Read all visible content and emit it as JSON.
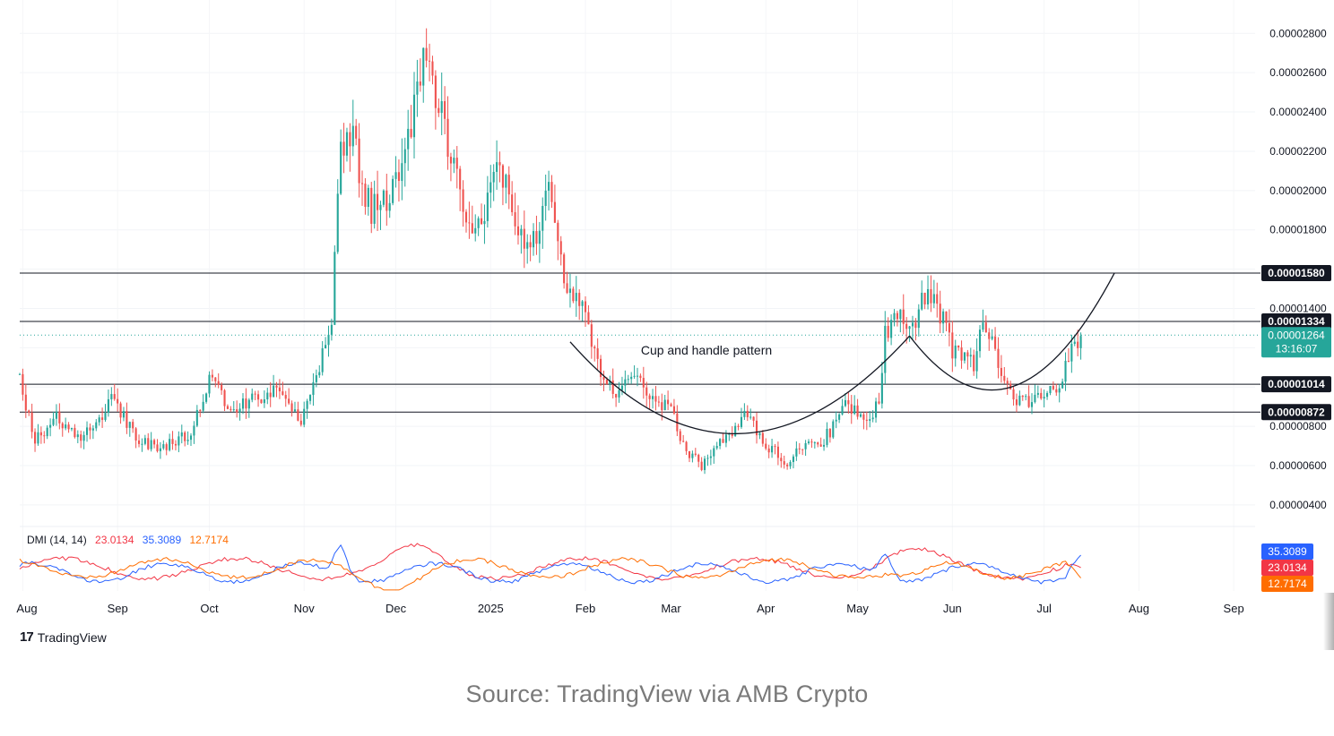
{
  "caption": "Source: TradingView via AMB Crypto",
  "brand": {
    "mark": "17",
    "name": "TradingView"
  },
  "chart_data": [
    {
      "type": "candlestick",
      "title": "",
      "x_axis": {
        "tick_labels": [
          "Aug",
          "Sep",
          "Oct",
          "Nov",
          "Dec",
          "2025",
          "Feb",
          "Mar",
          "Apr",
          "May",
          "Jun",
          "Jul",
          "Aug",
          "Sep"
        ],
        "range": [
          "2024-07-31",
          "2025-09-08"
        ]
      },
      "y_axis": {
        "position": "right",
        "tick_labels": [
          "0.00002800",
          "0.00002600",
          "0.00002400",
          "0.00002200",
          "0.00002000",
          "0.00001800",
          "0.00001400",
          "0.00000800",
          "0.00000600",
          "0.00000400"
        ],
        "range": [
          2.9e-06,
          2.97e-05
        ]
      },
      "horizontal_levels": [
        {
          "value": 1.58e-05,
          "label": "0.00001580"
        },
        {
          "value": 1.334e-05,
          "label": "0.00001334"
        },
        {
          "value": 1.014e-05,
          "label": "0.00001014"
        },
        {
          "value": 8.72e-06,
          "label": "0.00000872"
        }
      ],
      "current_price": {
        "value": 1.264e-05,
        "label": "0.00001264",
        "countdown": "13:16:07"
      },
      "annotation": "Cup and handle pattern",
      "colors": {
        "up": "#26a69a",
        "down": "#ef5350",
        "level": "#131722",
        "current": "#26a69a"
      },
      "close_path_keypoints": [
        [
          "2024-07-31",
          1.05e-05
        ],
        [
          "2024-08-05",
          7.2e-06
        ],
        [
          "2024-08-12",
          8.5e-06
        ],
        [
          "2024-08-20",
          7.3e-06
        ],
        [
          "2024-08-30",
          9.3e-06
        ],
        [
          "2024-09-08",
          7.3e-06
        ],
        [
          "2024-09-15",
          6.9e-06
        ],
        [
          "2024-09-25",
          7.7e-06
        ],
        [
          "2024-10-02",
          1.07e-05
        ],
        [
          "2024-10-08",
          8.7e-06
        ],
        [
          "2024-10-15",
          9.4e-06
        ],
        [
          "2024-10-22",
          9.8e-06
        ],
        [
          "2024-10-31",
          8.2e-06
        ],
        [
          "2024-11-05",
          1.03e-05
        ],
        [
          "2024-11-10",
          1.35e-05
        ],
        [
          "2024-11-13",
          2.18e-05
        ],
        [
          "2024-11-16",
          2.32e-05
        ],
        [
          "2024-11-23",
          1.88e-05
        ],
        [
          "2024-12-01",
          2.05e-05
        ],
        [
          "2024-12-06",
          2.35e-05
        ],
        [
          "2024-12-10",
          2.72e-05
        ],
        [
          "2024-12-15",
          2.4e-05
        ],
        [
          "2024-12-20",
          2.18e-05
        ],
        [
          "2024-12-23",
          1.85e-05
        ],
        [
          "2024-12-30",
          1.88e-05
        ],
        [
          "2025-01-04",
          2.12e-05
        ],
        [
          "2025-01-10",
          1.78e-05
        ],
        [
          "2025-01-14",
          1.65e-05
        ],
        [
          "2025-01-20",
          2.05e-05
        ],
        [
          "2025-01-25",
          1.58e-05
        ],
        [
          "2025-02-01",
          1.36e-05
        ],
        [
          "2025-02-03",
          1.18e-05
        ],
        [
          "2025-02-10",
          9.7e-06
        ],
        [
          "2025-02-15",
          1.07e-05
        ],
        [
          "2025-02-22",
          9.7e-06
        ],
        [
          "2025-03-01",
          8.7e-06
        ],
        [
          "2025-03-06",
          6.8e-06
        ],
        [
          "2025-03-11",
          6e-06
        ],
        [
          "2025-03-17",
          7.1e-06
        ],
        [
          "2025-03-26",
          8.6e-06
        ],
        [
          "2025-04-01",
          7.1e-06
        ],
        [
          "2025-04-08",
          6.2e-06
        ],
        [
          "2025-04-13",
          7.1e-06
        ],
        [
          "2025-04-20",
          7.3e-06
        ],
        [
          "2025-04-28",
          9.2e-06
        ],
        [
          "2025-05-04",
          8.2e-06
        ],
        [
          "2025-05-08",
          9.2e-06
        ],
        [
          "2025-05-10",
          1.28e-05
        ],
        [
          "2025-05-15",
          1.38e-05
        ],
        [
          "2025-05-19",
          1.3e-05
        ],
        [
          "2025-05-23",
          1.46e-05
        ],
        [
          "2025-05-28",
          1.38e-05
        ],
        [
          "2025-06-01",
          1.18e-05
        ],
        [
          "2025-06-08",
          1.12e-05
        ],
        [
          "2025-06-11",
          1.36e-05
        ],
        [
          "2025-06-17",
          1.07e-05
        ],
        [
          "2025-06-22",
          9.2e-06
        ],
        [
          "2025-06-30",
          9.6e-06
        ],
        [
          "2025-07-05",
          9.8e-06
        ],
        [
          "2025-07-09",
          1.15e-05
        ],
        [
          "2025-07-13",
          1.26e-05
        ]
      ]
    },
    {
      "type": "line",
      "title": "DMI (14, 14)",
      "series": [
        {
          "name": "23.0134",
          "color": "#f23645",
          "last": 23.0134
        },
        {
          "name": "35.3089",
          "color": "#2962ff",
          "last": 35.3089
        },
        {
          "name": "12.7174",
          "color": "#ff6d00",
          "last": 12.7174
        }
      ],
      "y_range": [
        0,
        60
      ]
    }
  ]
}
